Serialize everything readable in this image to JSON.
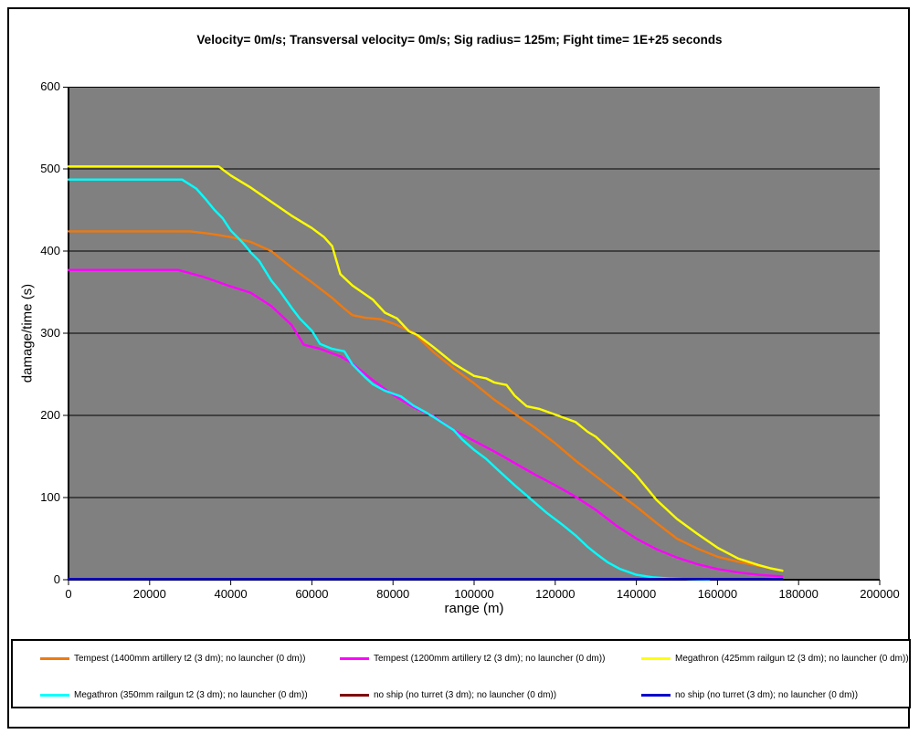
{
  "title": "Velocity= 0m/s; Transversal velocity= 0m/s; Sig radius= 125m; Fight time= 1E+25 seconds",
  "chart_data": {
    "type": "line",
    "title": "Velocity= 0m/s; Transversal velocity= 0m/s; Sig radius= 125m; Fight time= 1E+25 seconds",
    "xlabel": "range (m)",
    "ylabel": "damage/time (s)",
    "xlim": [
      0,
      200000
    ],
    "ylim": [
      0,
      600
    ],
    "x_ticks": [
      0,
      20000,
      40000,
      60000,
      80000,
      100000,
      120000,
      140000,
      160000,
      180000,
      200000
    ],
    "x_tick_labels": [
      "0",
      "20000",
      "40000",
      "60000",
      "80000",
      "100000",
      "120000",
      "140000",
      "160000",
      "180000",
      "200000"
    ],
    "y_ticks": [
      0,
      100,
      200,
      300,
      400,
      500,
      600
    ],
    "y_tick_labels": [
      "0",
      "100",
      "200",
      "300",
      "400",
      "500",
      "600"
    ],
    "grid": "horizontal-only",
    "plot_background": "#808080",
    "legend_position": "bottom",
    "series": [
      {
        "name": "Tempest (1400mm artillery t2 (3 dm); no launcher (0 dm))",
        "color": "#EE7A10",
        "points": [
          [
            0,
            424
          ],
          [
            30000,
            424
          ],
          [
            35000,
            421
          ],
          [
            40000,
            417
          ],
          [
            45000,
            411
          ],
          [
            50000,
            400
          ],
          [
            55000,
            380
          ],
          [
            60000,
            362
          ],
          [
            65000,
            343
          ],
          [
            68000,
            330
          ],
          [
            70000,
            322
          ],
          [
            73000,
            319
          ],
          [
            77000,
            317
          ],
          [
            80000,
            312
          ],
          [
            85000,
            301
          ],
          [
            90000,
            277
          ],
          [
            95000,
            257
          ],
          [
            100000,
            239
          ],
          [
            105000,
            219
          ],
          [
            110000,
            202
          ],
          [
            115000,
            185
          ],
          [
            120000,
            166
          ],
          [
            125000,
            145
          ],
          [
            130000,
            126
          ],
          [
            135000,
            107
          ],
          [
            140000,
            89
          ],
          [
            145000,
            69
          ],
          [
            150000,
            50
          ],
          [
            155000,
            38
          ],
          [
            160000,
            28
          ],
          [
            165000,
            22
          ],
          [
            170000,
            17
          ],
          [
            172000,
            15
          ]
        ]
      },
      {
        "name": "Tempest (1200mm artillery t2 (3 dm); no launcher (0 dm))",
        "color": "#FF00FF",
        "points": [
          [
            0,
            377
          ],
          [
            27000,
            377
          ],
          [
            33000,
            369
          ],
          [
            40000,
            357
          ],
          [
            45000,
            349
          ],
          [
            50000,
            333
          ],
          [
            55000,
            310
          ],
          [
            58000,
            286
          ],
          [
            62000,
            281
          ],
          [
            67000,
            272
          ],
          [
            70000,
            263
          ],
          [
            75000,
            243
          ],
          [
            80000,
            225
          ],
          [
            85000,
            210
          ],
          [
            90000,
            199
          ],
          [
            95000,
            182
          ],
          [
            100000,
            169
          ],
          [
            105000,
            156
          ],
          [
            110000,
            142
          ],
          [
            115000,
            128
          ],
          [
            120000,
            115
          ],
          [
            125000,
            101
          ],
          [
            130000,
            85
          ],
          [
            135000,
            66
          ],
          [
            140000,
            50
          ],
          [
            145000,
            37
          ],
          [
            150000,
            27
          ],
          [
            155000,
            19
          ],
          [
            160000,
            13
          ],
          [
            165000,
            9
          ],
          [
            170000,
            6
          ],
          [
            176000,
            4
          ]
        ]
      },
      {
        "name": "Megathron (425mm railgun t2 (3 dm); no launcher (0 dm))",
        "color": "#FFFF00",
        "points": [
          [
            0,
            503
          ],
          [
            37000,
            503
          ],
          [
            40000,
            492
          ],
          [
            45000,
            477
          ],
          [
            50000,
            460
          ],
          [
            55000,
            443
          ],
          [
            60000,
            428
          ],
          [
            63000,
            417
          ],
          [
            65000,
            406
          ],
          [
            67000,
            372
          ],
          [
            70000,
            358
          ],
          [
            75000,
            341
          ],
          [
            78000,
            325
          ],
          [
            81000,
            318
          ],
          [
            84000,
            302
          ],
          [
            86000,
            298
          ],
          [
            90000,
            283
          ],
          [
            95000,
            263
          ],
          [
            100000,
            248
          ],
          [
            103000,
            245
          ],
          [
            105000,
            240
          ],
          [
            108000,
            237
          ],
          [
            110000,
            224
          ],
          [
            113000,
            211
          ],
          [
            116000,
            208
          ],
          [
            120000,
            201
          ],
          [
            125000,
            192
          ],
          [
            128000,
            180
          ],
          [
            130000,
            174
          ],
          [
            135000,
            151
          ],
          [
            140000,
            127
          ],
          [
            145000,
            97
          ],
          [
            150000,
            74
          ],
          [
            155000,
            56
          ],
          [
            160000,
            39
          ],
          [
            165000,
            26
          ],
          [
            170000,
            18
          ],
          [
            173000,
            14
          ],
          [
            176000,
            11
          ]
        ]
      },
      {
        "name": "Megathron (350mm railgun t2 (3 dm); no launcher (0 dm))",
        "color": "#00FFFF",
        "points": [
          [
            0,
            487
          ],
          [
            28000,
            487
          ],
          [
            31500,
            476
          ],
          [
            34000,
            462
          ],
          [
            36000,
            450
          ],
          [
            38000,
            440
          ],
          [
            40000,
            425
          ],
          [
            43000,
            410
          ],
          [
            45000,
            398
          ],
          [
            47000,
            388
          ],
          [
            50000,
            364
          ],
          [
            52000,
            352
          ],
          [
            55000,
            331
          ],
          [
            57000,
            318
          ],
          [
            60000,
            303
          ],
          [
            62000,
            287
          ],
          [
            65000,
            281
          ],
          [
            68000,
            278
          ],
          [
            70000,
            262
          ],
          [
            73000,
            247
          ],
          [
            75000,
            238
          ],
          [
            78000,
            230
          ],
          [
            82000,
            223
          ],
          [
            85000,
            212
          ],
          [
            88000,
            204
          ],
          [
            90000,
            198
          ],
          [
            95000,
            182
          ],
          [
            97000,
            171
          ],
          [
            100000,
            158
          ],
          [
            103000,
            147
          ],
          [
            106000,
            133
          ],
          [
            110000,
            115
          ],
          [
            114000,
            98
          ],
          [
            118000,
            81
          ],
          [
            122000,
            66
          ],
          [
            125000,
            54
          ],
          [
            128000,
            40
          ],
          [
            130000,
            32
          ],
          [
            133000,
            21
          ],
          [
            136000,
            13
          ],
          [
            140000,
            6
          ],
          [
            144000,
            3
          ],
          [
            148000,
            1.5
          ],
          [
            153000,
            0.7
          ],
          [
            158000,
            0.3
          ]
        ]
      },
      {
        "name": "no ship (no turret (3 dm); no launcher (0 dm))",
        "color": "#800000",
        "points": [
          [
            0,
            0.8
          ],
          [
            176000,
            0.8
          ]
        ]
      },
      {
        "name": "no ship (no turret (3 dm); no launcher (0 dm))",
        "color": "#0000CC",
        "points": [
          [
            0,
            0.8
          ],
          [
            176000,
            0.8
          ]
        ]
      }
    ]
  }
}
